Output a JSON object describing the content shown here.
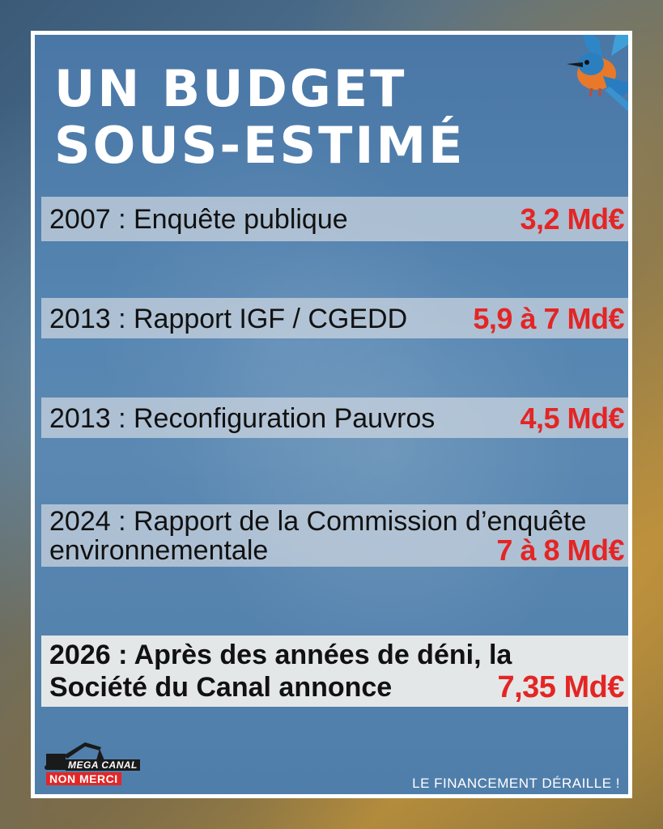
{
  "title": "UN BUDGET\nSOUS-ESTIMÉ",
  "rows": [
    {
      "label": "2007 : Enquête publique",
      "amount": "3,2 Md€"
    },
    {
      "label": "2013 : Rapport IGF / CGEDD",
      "amount": "5,9 à 7 Md€"
    },
    {
      "label": "2013 : Reconfiguration Pauvros",
      "amount": "4,5 Md€"
    },
    {
      "label_line1": "2024 : Rapport de la Commission d’enquête",
      "label_line2": "environnementale",
      "amount": "7 à 8 Md€"
    },
    {
      "label_line1": "2026  : Après des années de déni,  la",
      "label_line2": "Société du Canal annonce",
      "amount": "7,35 Md€"
    }
  ],
  "logo": {
    "line1": "MEGA CANAL",
    "line2": "NON MERCI"
  },
  "tagline": "LE FINANCEMENT DÉRAILLE !",
  "colors": {
    "accent": "#e42525",
    "card": "#5686b2",
    "row": "#ced7e0",
    "title": "#ffffff"
  },
  "icons": [
    "kingfisher-bird",
    "excavator-icon"
  ]
}
